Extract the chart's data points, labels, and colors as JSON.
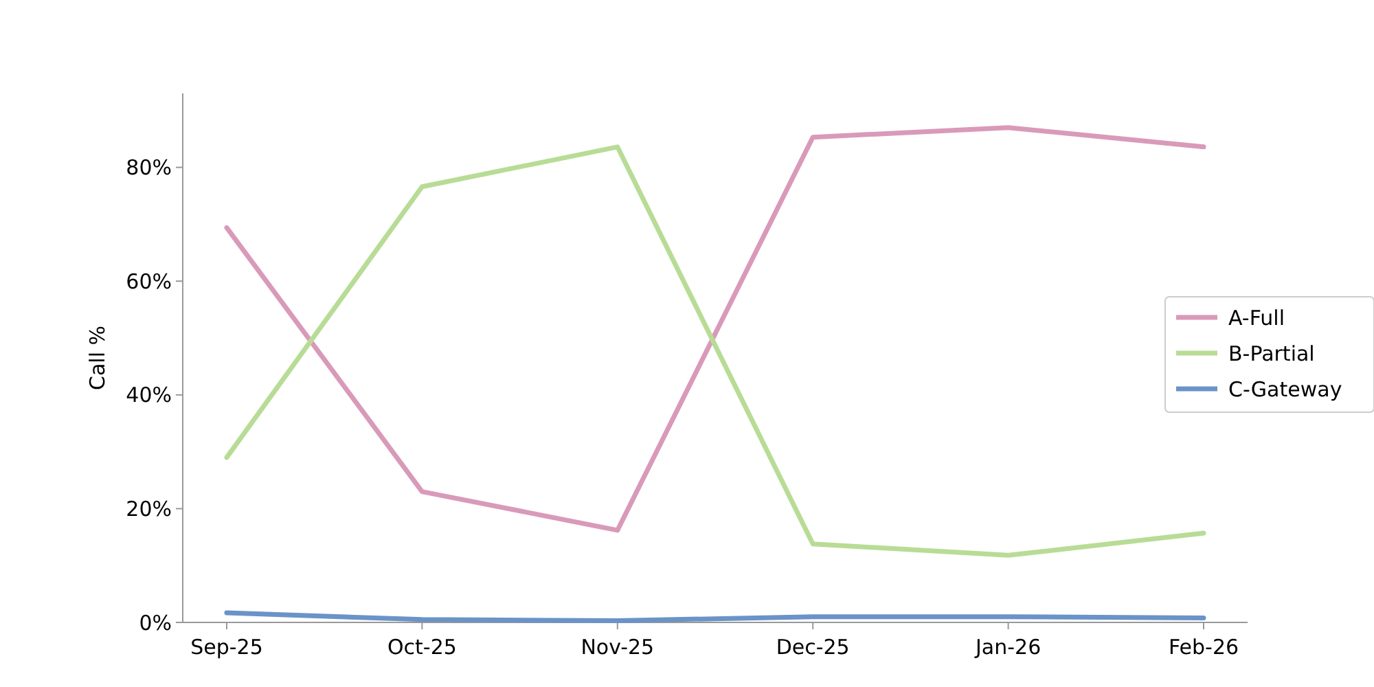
{
  "chart_data": {
    "type": "line",
    "ylabel": "Call %",
    "categories": [
      "Sep-25",
      "Oct-25",
      "Nov-25",
      "Dec-25",
      "Jan-26",
      "Feb-26"
    ],
    "series": [
      {
        "name": "A-Full",
        "color": "#d99aba",
        "values": [
          69.4,
          23.0,
          16.2,
          85.3,
          87.0,
          83.6
        ]
      },
      {
        "name": "B-Partial",
        "color": "#b8dc96",
        "values": [
          29.0,
          76.6,
          83.6,
          13.8,
          11.8,
          15.7
        ]
      },
      {
        "name": "C-Gateway",
        "color": "#6a93c8",
        "values": [
          1.7,
          0.5,
          0.3,
          1.0,
          1.0,
          0.8
        ]
      }
    ],
    "ylim": [
      0,
      93
    ],
    "yticks": [
      {
        "value": 0,
        "label": "0%"
      },
      {
        "value": 20,
        "label": "20%"
      },
      {
        "value": 40,
        "label": "40%"
      },
      {
        "value": 60,
        "label": "60%"
      },
      {
        "value": 80,
        "label": "80%"
      }
    ],
    "legend": "right",
    "grid": false,
    "marker": "none",
    "line_style": "solid"
  }
}
